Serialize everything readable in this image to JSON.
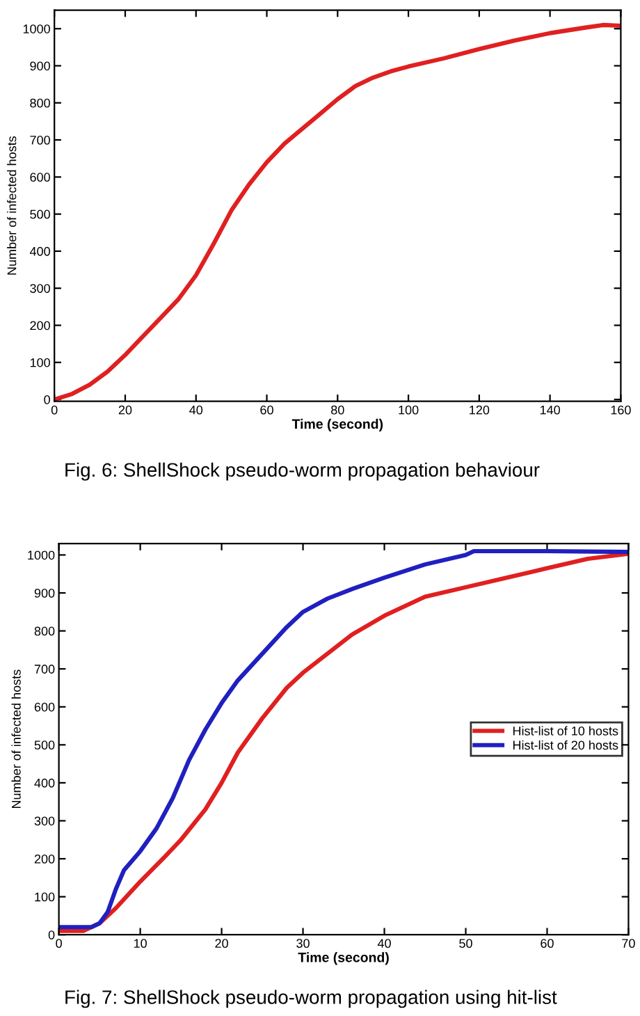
{
  "chart_data": [
    {
      "type": "line",
      "xlabel": "Time (second)",
      "ylabel": "Number of infected hosts",
      "annotations": [
        "Fig. 6: ShellShock pseudo-worm propagation behaviour"
      ],
      "xlim": [
        0,
        160
      ],
      "xticks": [
        0,
        20,
        40,
        60,
        80,
        100,
        120,
        140,
        160
      ],
      "ylim": [
        -5,
        1050
      ],
      "yticks": [
        0,
        100,
        200,
        300,
        400,
        500,
        600,
        700,
        800,
        900,
        1000
      ],
      "grid": false,
      "legend": false,
      "series": [
        {
          "color": "#e02020",
          "x": [
            0,
            5,
            10,
            15,
            20,
            25,
            30,
            35,
            40,
            45,
            50,
            55,
            60,
            65,
            70,
            75,
            80,
            85,
            90,
            95,
            100,
            110,
            120,
            130,
            140,
            150,
            155,
            160
          ],
          "values": [
            0,
            15,
            40,
            75,
            120,
            170,
            220,
            270,
            335,
            420,
            510,
            580,
            640,
            690,
            730,
            770,
            810,
            845,
            868,
            885,
            898,
            920,
            945,
            968,
            988,
            1003,
            1010,
            1008
          ]
        }
      ]
    },
    {
      "type": "line",
      "xlabel": "Time (second)",
      "ylabel": "Number of infected hosts",
      "annotations": [
        "Fig. 7: ShellShock pseudo-worm propagation using hit-list"
      ],
      "xlim": [
        0,
        70
      ],
      "xticks": [
        0,
        10,
        20,
        30,
        40,
        50,
        60,
        70
      ],
      "ylim": [
        0,
        1030
      ],
      "yticks": [
        0,
        100,
        200,
        300,
        400,
        500,
        600,
        700,
        800,
        900,
        1000
      ],
      "grid": false,
      "legend": "center right",
      "series": [
        {
          "name": "Hist-list of 10 hosts",
          "color": "#e02020",
          "x": [
            0,
            3,
            5,
            7,
            10,
            13,
            15,
            18,
            20,
            22,
            25,
            28,
            30,
            33,
            36,
            40,
            45,
            50,
            55,
            60,
            65,
            70
          ],
          "values": [
            10,
            10,
            30,
            70,
            140,
            205,
            250,
            330,
            400,
            480,
            570,
            650,
            690,
            740,
            790,
            840,
            890,
            915,
            940,
            965,
            990,
            1003
          ]
        },
        {
          "name": "Hist-list of 20 hosts",
          "color": "#2020c0",
          "x": [
            0,
            4,
            5,
            6,
            7,
            8,
            10,
            12,
            14,
            16,
            18,
            20,
            22,
            25,
            28,
            30,
            33,
            36,
            40,
            45,
            50,
            51,
            55,
            60,
            70
          ],
          "values": [
            20,
            20,
            30,
            60,
            120,
            170,
            220,
            280,
            360,
            460,
            540,
            610,
            670,
            740,
            810,
            850,
            885,
            910,
            940,
            975,
            1000,
            1010,
            1010,
            1010,
            1008
          ]
        }
      ]
    }
  ]
}
